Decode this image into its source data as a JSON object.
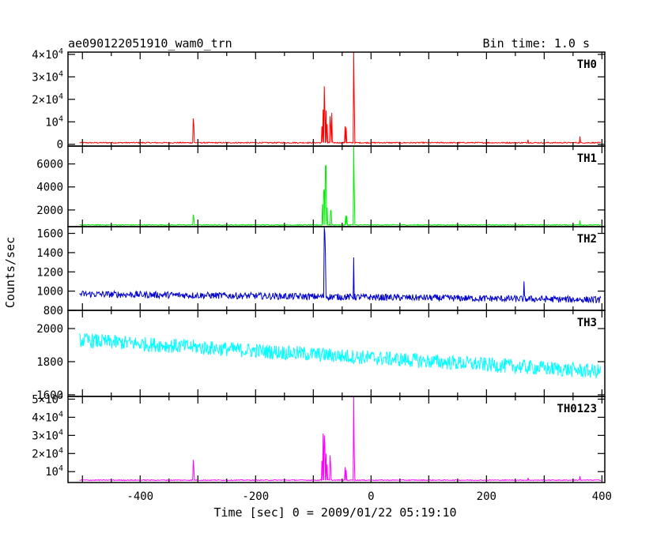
{
  "header": {
    "title": "ae090122051910_wam0_trn",
    "bin_time": "Bin time: 1.0 s"
  },
  "axes": {
    "ylabel": "Counts/sec",
    "xlabel": "Time [sec] 0 = 2009/01/22 05:19:10"
  },
  "chart_data": {
    "type": "line",
    "title": "ae090122051910_wam0_trn",
    "subtitle": "Bin time: 1.0 s",
    "xlabel": "Time [sec] 0 = 2009/01/22 05:19:10",
    "ylabel": "Counts/sec",
    "xlim": [
      -525,
      405
    ],
    "x_ticks": [
      "-400",
      "-200",
      "0",
      "200",
      "400"
    ],
    "x_tick_values": [
      -400,
      -200,
      0,
      200,
      400
    ],
    "x_start": -505,
    "x_end": 398,
    "grid": false,
    "panels": [
      {
        "name": "TH0",
        "color": "#ff0000",
        "ylim": [
          -800,
          41000
        ],
        "baseline": 700,
        "noise": 250,
        "trend": 0,
        "yticks": [
          {
            "v": 0,
            "label": "0"
          },
          {
            "v": 10000,
            "label": "10",
            "exp": "4"
          },
          {
            "v": 20000,
            "label": "2×10",
            "exp": "4"
          },
          {
            "v": 30000,
            "label": "3×10",
            "exp": "4"
          },
          {
            "v": 40000,
            "label": "4×10",
            "exp": "4"
          }
        ],
        "peaks": [
          [
            -308,
            11500
          ],
          [
            -307,
            8500
          ],
          [
            -85,
            8000
          ],
          [
            -83,
            15500
          ],
          [
            -81,
            25800
          ],
          [
            -80,
            14500
          ],
          [
            -78,
            15000
          ],
          [
            -76,
            9000
          ],
          [
            -71,
            12500
          ],
          [
            -70,
            8500
          ],
          [
            -68,
            14000
          ],
          [
            -45,
            8000
          ],
          [
            -43,
            7500
          ],
          [
            -30,
            41000
          ],
          [
            -29,
            19000
          ],
          [
            272,
            2000
          ],
          [
            362,
            3500
          ]
        ]
      },
      {
        "name": "TH1",
        "color": "#00ee00",
        "ylim": [
          550,
          7550
        ],
        "baseline": 700,
        "noise": 40,
        "trend": 0,
        "yticks": [
          {
            "v": 2000,
            "label": "2000"
          },
          {
            "v": 4000,
            "label": "4000"
          },
          {
            "v": 6000,
            "label": "6000"
          }
        ],
        "peaks": [
          [
            -308,
            1600
          ],
          [
            -307,
            1300
          ],
          [
            -84,
            2500
          ],
          [
            -82,
            3600
          ],
          [
            -81,
            3800
          ],
          [
            -79,
            5800
          ],
          [
            -78,
            5900
          ],
          [
            -76,
            2200
          ],
          [
            -70,
            2000
          ],
          [
            -69,
            1900
          ],
          [
            -44,
            1500
          ],
          [
            -42,
            1500
          ],
          [
            -30,
            7550
          ],
          [
            -29,
            3800
          ],
          [
            362,
            1100
          ]
        ]
      },
      {
        "name": "TH2",
        "color": "#0000cc",
        "ylim": [
          800,
          1670
        ],
        "baseline": 970,
        "noise": 35,
        "trend": -60,
        "yticks": [
          {
            "v": 800,
            "label": "800"
          },
          {
            "v": 1000,
            "label": "1000"
          },
          {
            "v": 1200,
            "label": "1200"
          },
          {
            "v": 1400,
            "label": "1400"
          },
          {
            "v": 1600,
            "label": "1600"
          }
        ],
        "peaks": [
          [
            -81,
            1660
          ],
          [
            -80,
            1600
          ],
          [
            -79,
            1400
          ],
          [
            -30,
            1350
          ],
          [
            265,
            1100
          ]
        ]
      },
      {
        "name": "TH3",
        "color": "#00ffff",
        "ylim": [
          1590,
          2110
        ],
        "baseline": 1930,
        "noise": 45,
        "trend": -190,
        "yticks": [
          {
            "v": 1600,
            "label": "1600"
          },
          {
            "v": 1800,
            "label": "1800"
          },
          {
            "v": 2000,
            "label": "2000"
          }
        ],
        "peaks": []
      },
      {
        "name": "TH0123",
        "color": "#ff00ff",
        "ylim": [
          4000,
          51500
        ],
        "baseline": 5300,
        "noise": 250,
        "trend": 0,
        "yticks": [
          {
            "v": 10000,
            "label": "10",
            "exp": "4"
          },
          {
            "v": 20000,
            "label": "2×10",
            "exp": "4"
          },
          {
            "v": 30000,
            "label": "3×10",
            "exp": "4"
          },
          {
            "v": 40000,
            "label": "4×10",
            "exp": "4"
          },
          {
            "v": 50000,
            "label": "5×10",
            "exp": "4"
          }
        ],
        "peaks": [
          [
            -308,
            16500
          ],
          [
            -307,
            12000
          ],
          [
            -85,
            16000
          ],
          [
            -83,
            31000
          ],
          [
            -81,
            30000
          ],
          [
            -80,
            25000
          ],
          [
            -78,
            20000
          ],
          [
            -76,
            14000
          ],
          [
            -71,
            19000
          ],
          [
            -70,
            14000
          ],
          [
            -45,
            12500
          ],
          [
            -43,
            11000
          ],
          [
            -30,
            51500
          ],
          [
            -29,
            20000
          ],
          [
            272,
            6500
          ],
          [
            362,
            7500
          ]
        ]
      }
    ]
  }
}
